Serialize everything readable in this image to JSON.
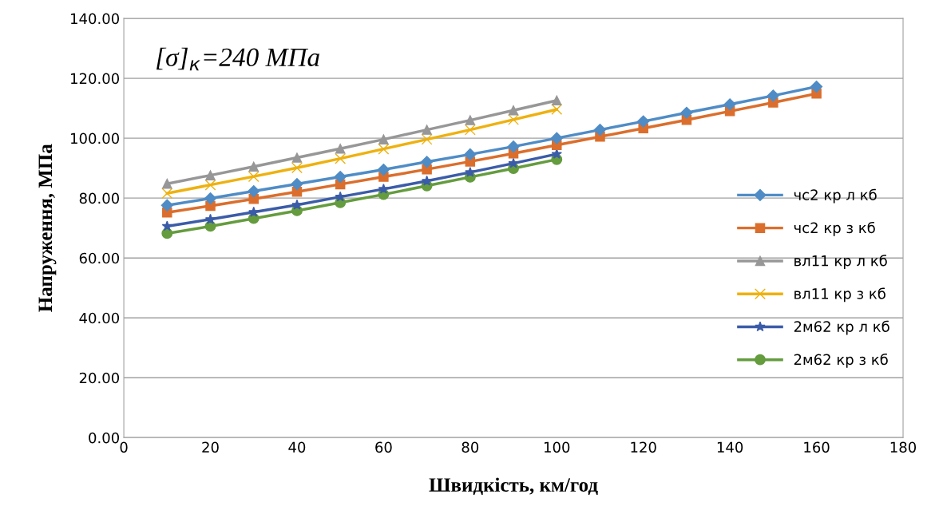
{
  "chart_data": {
    "type": "line",
    "xlabel": "Швидкість, км/год",
    "ylabel": "Напруження, МПа",
    "annotations": [
      "[σ]$_{к}$=240 МПа"
    ],
    "xlim": [
      0,
      180
    ],
    "xticks": [
      0,
      20,
      40,
      60,
      80,
      100,
      120,
      140,
      160,
      180
    ],
    "ylim": [
      0,
      140
    ],
    "yticks": [
      {
        "value": 0,
        "label": "0.00"
      },
      {
        "value": 20,
        "label": "20.00"
      },
      {
        "value": 40,
        "label": "40.00"
      },
      {
        "value": 60,
        "label": "60.00"
      },
      {
        "value": 80,
        "label": "80.00"
      },
      {
        "value": 100,
        "label": "100.00"
      },
      {
        "value": 120,
        "label": "120.00"
      },
      {
        "value": 140,
        "label": "140.00"
      }
    ],
    "grid": "y",
    "legend": "right",
    "line_style": "solid",
    "series": [
      {
        "name": "чс2 кр л кб",
        "color": "#4f8cc6",
        "marker": "diamond",
        "x": [
          10,
          20,
          30,
          40,
          50,
          60,
          70,
          80,
          90,
          100,
          110,
          120,
          130,
          140,
          150,
          160
        ],
        "values": [
          77.6,
          79.9,
          82.3,
          84.7,
          87.1,
          89.5,
          92.1,
          94.6,
          97.2,
          100,
          102.8,
          105.6,
          108.5,
          111.3,
          114.2,
          117.2
        ]
      },
      {
        "name": "чс2 кр з кб",
        "color": "#db6e2c",
        "marker": "square",
        "x": [
          10,
          20,
          30,
          40,
          50,
          60,
          70,
          80,
          90,
          100,
          110,
          120,
          130,
          140,
          150,
          160
        ],
        "values": [
          75.2,
          77.4,
          79.7,
          82.1,
          84.6,
          87.1,
          89.6,
          92.2,
          94.9,
          97.7,
          100.5,
          103.3,
          106.1,
          109,
          111.9,
          114.9
        ]
      },
      {
        "name": "вл11 кр л кб",
        "color": "#979797",
        "marker": "triangle",
        "x": [
          10,
          20,
          30,
          40,
          50,
          60,
          70,
          80,
          90,
          100
        ],
        "values": [
          84.8,
          87.6,
          90.5,
          93.5,
          96.5,
          99.6,
          102.8,
          106,
          109.3,
          112.6
        ]
      },
      {
        "name": "вл11 кр з кб",
        "color": "#eeb10f",
        "marker": "cross",
        "x": [
          10,
          20,
          30,
          40,
          50,
          60,
          70,
          80,
          90,
          100
        ],
        "values": [
          81.6,
          84.4,
          87.2,
          90.1,
          93.2,
          96.4,
          99.6,
          102.8,
          106.2,
          109.6
        ]
      },
      {
        "name": "2м62 кр л кб",
        "color": "#3b5ca8",
        "marker": "star",
        "x": [
          10,
          20,
          30,
          40,
          50,
          60,
          70,
          80,
          90,
          100
        ],
        "values": [
          70.6,
          72.9,
          75.3,
          77.7,
          80.4,
          83,
          85.7,
          88.6,
          91.6,
          94.7
        ]
      },
      {
        "name": "2м62 кр з кб",
        "color": "#649c3e",
        "marker": "circle",
        "x": [
          10,
          20,
          30,
          40,
          50,
          60,
          70,
          80,
          90,
          100
        ],
        "values": [
          68.2,
          70.6,
          73.2,
          75.8,
          78.5,
          81.2,
          84.1,
          87,
          89.9,
          92.9
        ]
      }
    ]
  }
}
